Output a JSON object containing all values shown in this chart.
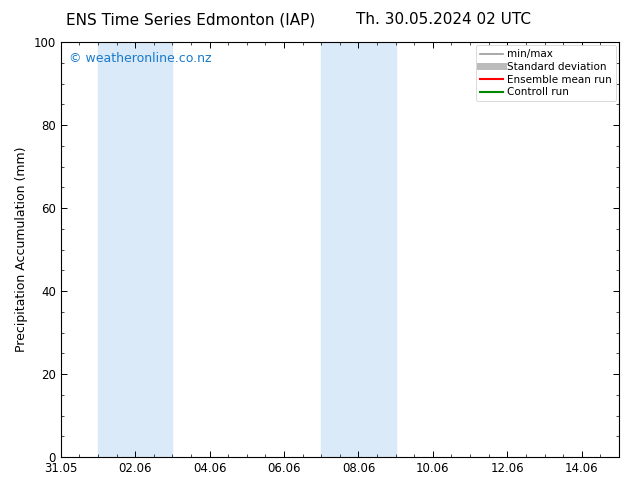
{
  "title_left": "ENS Time Series Edmonton (IAP)",
  "title_right": "Th. 30.05.2024 02 UTC",
  "ylabel": "Precipitation Accumulation (mm)",
  "ylim": [
    0,
    100
  ],
  "yticks": [
    0,
    20,
    40,
    60,
    80,
    100
  ],
  "xmin": 0.0,
  "xmax": 15.0,
  "xtick_labels": [
    "31.05",
    "02.06",
    "04.06",
    "06.06",
    "08.06",
    "10.06",
    "12.06",
    "14.06"
  ],
  "xtick_positions": [
    0.0,
    2.0,
    4.0,
    6.0,
    8.0,
    10.0,
    12.0,
    14.0
  ],
  "background_color": "#ffffff",
  "watermark_text": "© weatheronline.co.nz",
  "watermark_color": "#1a7acc",
  "shaded_bands": [
    {
      "xstart": 1.0,
      "xend": 3.0,
      "color": "#daeaf8"
    },
    {
      "xstart": 7.0,
      "xend": 9.0,
      "color": "#daeaf8"
    }
  ],
  "legend_entries": [
    {
      "label": "min/max",
      "color": "#999999",
      "linewidth": 1.2,
      "linestyle": "-"
    },
    {
      "label": "Standard deviation",
      "color": "#bbbbbb",
      "linewidth": 5,
      "linestyle": "-"
    },
    {
      "label": "Ensemble mean run",
      "color": "#ff0000",
      "linewidth": 1.5,
      "linestyle": "-"
    },
    {
      "label": "Controll run",
      "color": "#008800",
      "linewidth": 1.5,
      "linestyle": "-"
    }
  ],
  "spine_color": "#000000",
  "title_fontsize": 11,
  "axis_label_fontsize": 9,
  "tick_fontsize": 8.5,
  "watermark_fontsize": 9,
  "legend_fontsize": 7.5
}
